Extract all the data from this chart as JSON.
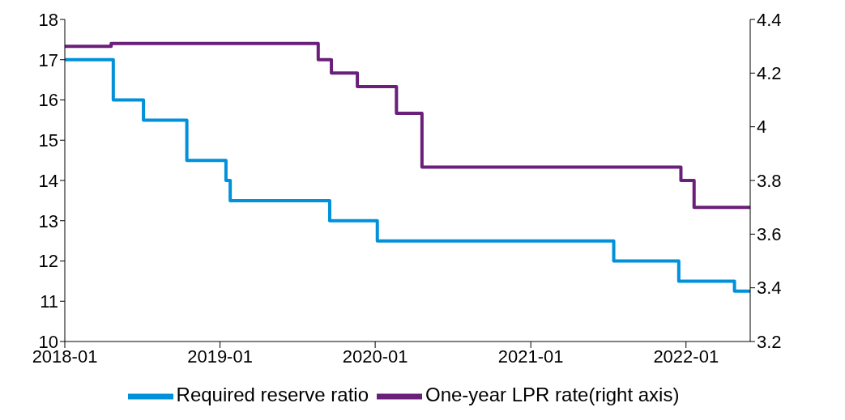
{
  "chart_data": {
    "type": "step",
    "xlim": [
      "2018-01",
      "2022-06"
    ],
    "xticks": [
      "2018-01",
      "2019-01",
      "2020-01",
      "2021-01",
      "2022-01"
    ],
    "ylim": [
      10,
      18
    ],
    "yticks": [
      10,
      11,
      12,
      13,
      14,
      15,
      16,
      17,
      18
    ],
    "y2lim": [
      3.2,
      4.4
    ],
    "y2ticks": [
      3.2,
      3.4,
      3.6,
      3.8,
      4,
      4.2,
      4.4
    ],
    "legend": "bottom",
    "marker": "none",
    "line_style": "solid",
    "series": [
      {
        "name": "Required reserve ratio",
        "color": "#0091da",
        "x": [
          "2018-01-01",
          "2018-04-25",
          "2018-07-05",
          "2018-10-15",
          "2019-01-15",
          "2019-01-25",
          "2019-09-16",
          "2020-01-06",
          "2021-07-15",
          "2021-12-15",
          "2022-04-25",
          "2022-06-01"
        ],
        "values": [
          17,
          16,
          15.5,
          14.5,
          14,
          13.5,
          13,
          12.5,
          12,
          11.5,
          11.25,
          11.25
        ]
      },
      {
        "name": "One-year LPR rate(right axis)",
        "color": "#6a1f7a",
        "axis": "y2",
        "x": [
          "2018-01-01",
          "2018-04-20",
          "2019-08-20",
          "2019-09-20",
          "2019-11-20",
          "2020-02-20",
          "2020-04-20",
          "2021-12-20",
          "2022-01-20",
          "2022-06-01"
        ],
        "values": [
          4.3,
          4.31,
          4.25,
          4.2,
          4.15,
          4.05,
          3.85,
          3.8,
          3.7,
          3.7
        ]
      }
    ]
  }
}
